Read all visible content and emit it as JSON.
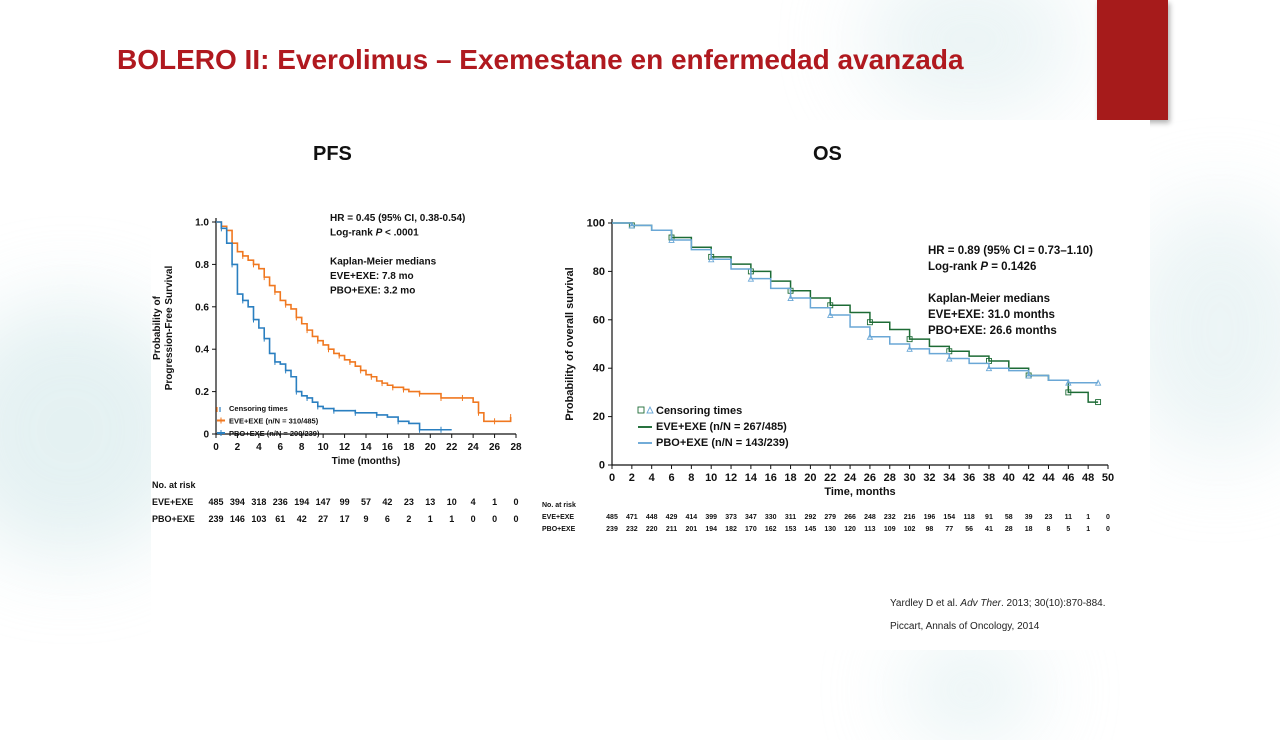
{
  "slide": {
    "title": "BOLERO II: Everolimus – Exemestane en enfermedad avanzada",
    "accent_color": "#b0191f",
    "tab_color": "#a61b1b"
  },
  "references": [
    {
      "authors": "Yardley D et al. ",
      "journal": "Adv Ther",
      "rest": ". 2013; 30(10):870-884."
    },
    {
      "authors": "Piccart, Annals of Oncology, 2014",
      "journal": "",
      "rest": ""
    }
  ],
  "chart_data": [
    {
      "type": "line",
      "title": "PFS",
      "xlabel": "Time (months)",
      "ylabel": "Probability of Progression-Free Survival",
      "xlim": [
        0,
        28
      ],
      "ylim": [
        0,
        1.0
      ],
      "x_ticks": [
        0,
        2,
        4,
        6,
        8,
        10,
        12,
        14,
        16,
        18,
        20,
        22,
        24,
        26,
        28
      ],
      "y_ticks": [
        0,
        0.2,
        0.4,
        0.6,
        0.8,
        1.0
      ],
      "y_tick_labels": [
        "0",
        "0.2",
        "0.4",
        "0.6",
        "0.8",
        "1.0"
      ],
      "annotations": [
        {
          "prefix": "HR = 0.45 (95% CI, 0.38-0.54)",
          "italic": "",
          "suffix": ""
        },
        {
          "prefix": "Log-rank ",
          "italic": "P",
          "suffix": " < .0001"
        },
        {
          "prefix": "",
          "italic": "",
          "suffix": ""
        },
        {
          "prefix": "Kaplan-Meier medians",
          "italic": "",
          "suffix": ""
        },
        {
          "prefix": "EVE+EXE: 7.8 mo",
          "italic": "",
          "suffix": ""
        },
        {
          "prefix": "PBO+EXE: 3.2 mo",
          "italic": "",
          "suffix": ""
        }
      ],
      "legend_position": "bottom-left",
      "legend": [
        {
          "label": "Censoring times",
          "marker": "tick"
        },
        {
          "label": "EVE+EXE (n/N = 310/485)",
          "series": 0
        },
        {
          "label": "PBO+EXE (n/N = 200/239)",
          "series": 1
        }
      ],
      "series": [
        {
          "name": "EVE+EXE",
          "color": "#f07820",
          "x": [
            0,
            0.5,
            1,
            1.5,
            2,
            2.5,
            3,
            3.5,
            4,
            4.5,
            5,
            5.5,
            6,
            6.5,
            7,
            7.5,
            8,
            8.5,
            9,
            9.5,
            10,
            10.5,
            11,
            11.5,
            12,
            12.5,
            13,
            13.5,
            14,
            14.5,
            15,
            15.5,
            16,
            16.5,
            17,
            17.5,
            18,
            19,
            20,
            21,
            22,
            23,
            24,
            24.5,
            25,
            26,
            27,
            27.5
          ],
          "y": [
            1.0,
            0.98,
            0.96,
            0.9,
            0.86,
            0.84,
            0.82,
            0.8,
            0.78,
            0.74,
            0.7,
            0.67,
            0.63,
            0.61,
            0.59,
            0.55,
            0.52,
            0.49,
            0.46,
            0.44,
            0.42,
            0.4,
            0.38,
            0.37,
            0.35,
            0.34,
            0.32,
            0.3,
            0.28,
            0.27,
            0.25,
            0.24,
            0.23,
            0.22,
            0.22,
            0.21,
            0.2,
            0.19,
            0.19,
            0.17,
            0.17,
            0.17,
            0.15,
            0.1,
            0.06,
            0.06,
            0.06,
            0.08
          ]
        },
        {
          "name": "PBO+EXE",
          "color": "#2a7fc0",
          "x": [
            0,
            0.5,
            1,
            1.5,
            2,
            2.5,
            3,
            3.5,
            4,
            4.5,
            5,
            5.5,
            6,
            6.5,
            7,
            7.5,
            8,
            8.5,
            9,
            9.5,
            10,
            11,
            12,
            13,
            14,
            15,
            16,
            17,
            18,
            19,
            20,
            21,
            22
          ],
          "y": [
            1.0,
            0.97,
            0.9,
            0.8,
            0.66,
            0.63,
            0.6,
            0.54,
            0.5,
            0.45,
            0.38,
            0.34,
            0.33,
            0.3,
            0.27,
            0.2,
            0.18,
            0.17,
            0.15,
            0.13,
            0.12,
            0.11,
            0.11,
            0.1,
            0.1,
            0.09,
            0.08,
            0.06,
            0.05,
            0.02,
            0.02,
            0.02,
            0.02
          ]
        }
      ],
      "risk_table": {
        "header": "No. at risk",
        "rows": [
          {
            "label": "EVE+EXE",
            "values": [
              "485",
              "394",
              "318",
              "236",
              "194",
              "147",
              "99",
              "57",
              "42",
              "23",
              "13",
              "10",
              "4",
              "1",
              "0"
            ]
          },
          {
            "label": "PBO+EXE",
            "values": [
              "239",
              "146",
              "103",
              "61",
              "42",
              "27",
              "17",
              "9",
              "6",
              "2",
              "1",
              "1",
              "0",
              "0",
              "0"
            ]
          }
        ]
      }
    },
    {
      "type": "line",
      "title": "OS",
      "xlabel": "Time, months",
      "ylabel": "Probability of overall survival",
      "xlim": [
        0,
        50
      ],
      "ylim": [
        0,
        100
      ],
      "x_ticks": [
        0,
        2,
        4,
        6,
        8,
        10,
        12,
        14,
        16,
        18,
        20,
        22,
        24,
        26,
        28,
        30,
        32,
        34,
        36,
        38,
        40,
        42,
        44,
        46,
        48,
        50
      ],
      "y_ticks": [
        0,
        20,
        40,
        60,
        80,
        100
      ],
      "y_tick_labels": [
        "0",
        "20",
        "40",
        "60",
        "80",
        "100"
      ],
      "annotations": [
        {
          "prefix": "HR = 0.89 (95% CI = 0.73–1.10)",
          "italic": "",
          "suffix": ""
        },
        {
          "prefix": "Log-rank ",
          "italic": "P",
          "suffix": " = 0.1426"
        },
        {
          "prefix": "",
          "italic": "",
          "suffix": ""
        },
        {
          "prefix": "Kaplan-Meier medians",
          "italic": "",
          "suffix": ""
        },
        {
          "prefix": "EVE+EXE: 31.0 months",
          "italic": "",
          "suffix": ""
        },
        {
          "prefix": "PBO+EXE: 26.6 months",
          "italic": "",
          "suffix": ""
        }
      ],
      "legend_position": "bottom-left",
      "legend": [
        {
          "label": "Censoring times",
          "marker": "square-triangle"
        },
        {
          "label": "EVE+EXE (n/N = 267/485)",
          "series": 0
        },
        {
          "label": "PBO+EXE (n/N = 143/239)",
          "series": 1
        }
      ],
      "series": [
        {
          "name": "EVE+EXE",
          "color": "#1d6b35",
          "x": [
            0,
            2,
            4,
            6,
            8,
            10,
            12,
            14,
            16,
            18,
            20,
            22,
            24,
            26,
            28,
            30,
            32,
            34,
            36,
            38,
            40,
            42,
            44,
            46,
            48,
            49
          ],
          "y": [
            100,
            99,
            97,
            94,
            90,
            86,
            83,
            80,
            76,
            72,
            69,
            66,
            63,
            59,
            56,
            52,
            49,
            47,
            45,
            43,
            40,
            37,
            35,
            30,
            26,
            26
          ]
        },
        {
          "name": "PBO+EXE",
          "color": "#6aa7d6",
          "x": [
            0,
            2,
            4,
            6,
            8,
            10,
            12,
            14,
            16,
            18,
            20,
            22,
            24,
            26,
            28,
            30,
            32,
            34,
            36,
            38,
            40,
            42,
            44,
            46,
            48,
            49
          ],
          "y": [
            100,
            99,
            97,
            93,
            89,
            85,
            81,
            77,
            73,
            69,
            65,
            62,
            57,
            53,
            50,
            48,
            46,
            44,
            42,
            40,
            39,
            37,
            35,
            34,
            34,
            34
          ]
        }
      ],
      "risk_table": {
        "header": "No. at risk",
        "rows": [
          {
            "label": "EVE+EXE",
            "values": [
              "485",
              "471",
              "448",
              "429",
              "414",
              "399",
              "373",
              "347",
              "330",
              "311",
              "292",
              "279",
              "266",
              "248",
              "232",
              "216",
              "196",
              "154",
              "118",
              "91",
              "58",
              "39",
              "23",
              "11",
              "1",
              "0"
            ]
          },
          {
            "label": "PBO+EXE",
            "values": [
              "239",
              "232",
              "220",
              "211",
              "201",
              "194",
              "182",
              "170",
              "162",
              "153",
              "145",
              "130",
              "120",
              "113",
              "109",
              "102",
              "98",
              "77",
              "56",
              "41",
              "28",
              "18",
              "8",
              "5",
              "1",
              "0"
            ]
          }
        ]
      }
    }
  ]
}
